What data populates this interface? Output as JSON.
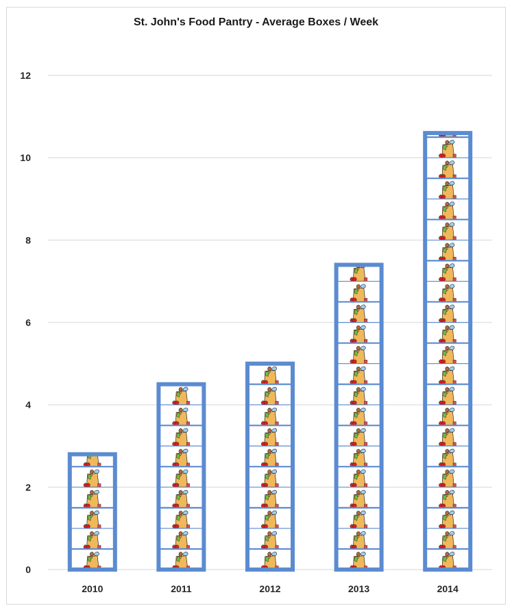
{
  "chart_data": {
    "type": "bar",
    "title": "St. John's Food Pantry - Average Boxes / Week",
    "xlabel": "",
    "ylabel": "",
    "categories": [
      "2010",
      "2011",
      "2012",
      "2013",
      "2014"
    ],
    "values": [
      2.8,
      4.5,
      5.0,
      7.4,
      10.6
    ],
    "ylim": [
      0,
      12
    ],
    "yticks": [
      "0",
      "2",
      "4",
      "6",
      "8",
      "10",
      "12"
    ],
    "grid": true,
    "legend": "none",
    "bar_fill": "picture-stack",
    "pictogram_icon": "grocery-bag-icon",
    "colors": {
      "bar_border": "#5b8bd0",
      "gridline": "#e3e3e3",
      "bag": "#f0b85a",
      "tomato": "#d81f1f",
      "bottle": "#9ed0f0",
      "greens": "#6fbf3f"
    }
  }
}
